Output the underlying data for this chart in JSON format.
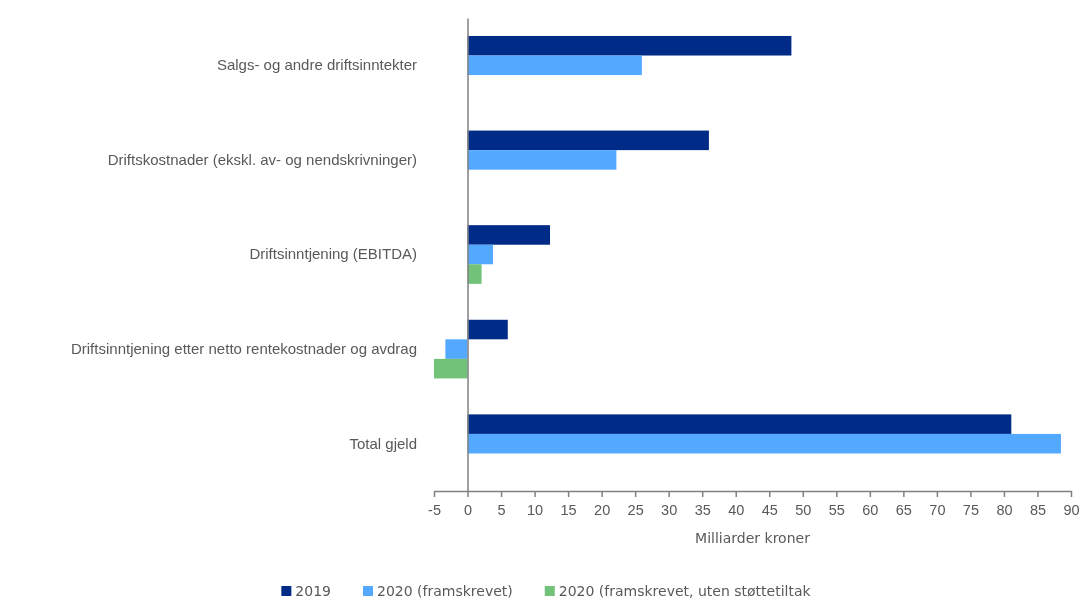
{
  "chart_data": {
    "type": "bar",
    "orientation": "horizontal",
    "categories": [
      "Salgs- og andre driftsinntekter",
      "Driftskostnader (ekskl. av- og nendskrivninger)",
      "Driftsinntjening (EBITDA)",
      "Driftsinntjening etter netto rentekostnader og avdrag",
      "Total gjeld"
    ],
    "series": [
      {
        "name": "2019",
        "color": "#002b87",
        "values": [
          48.3,
          36.0,
          12.3,
          6.0,
          81.1
        ]
      },
      {
        "name": "2020 (framskrevet)",
        "color": "#52a9ff",
        "values": [
          26.0,
          22.2,
          3.8,
          -3.3,
          88.5
        ]
      },
      {
        "name": "2020 (framskrevet, uten støttetiltak",
        "color": "#72c27a",
        "values": [
          null,
          null,
          2.1,
          -5.0,
          null
        ]
      }
    ],
    "xlabel": "Milliarder kroner",
    "xlim": [
      -5,
      90
    ],
    "xticks": [
      -5,
      0,
      5,
      10,
      15,
      20,
      25,
      30,
      35,
      40,
      45,
      50,
      55,
      60,
      65,
      70,
      75,
      80,
      85,
      90
    ],
    "legend": "bottom"
  }
}
